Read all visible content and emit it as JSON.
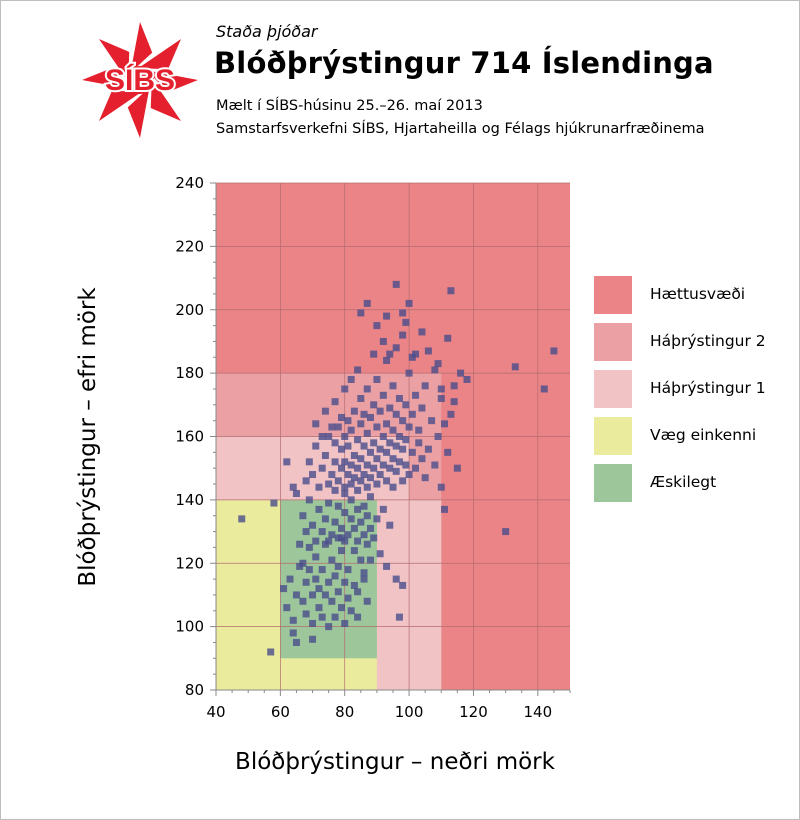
{
  "header": {
    "kicker": "Staða þjóðar",
    "title": "Blóðþrýstingur 714 Íslendinga",
    "subtitle_1": "Mælt í SÍBS-húsinu 25.–26. maí 2013",
    "subtitle_2": "Samstarfsverkefni SÍBS, Hjartaheilla og Félags hjúkrunarfræðinema"
  },
  "logo": {
    "text": "SÍBS",
    "color": "#e4202e"
  },
  "colors": {
    "hazard": "#ea8487",
    "stage2": "#eba1a3",
    "stage1": "#f1c3c4",
    "mild": "#ebeb9d",
    "desirable": "#9dc69b",
    "point": "#4b4d8c",
    "grid": "#b46c70"
  },
  "chart_data": {
    "type": "scatter",
    "xlabel": "Blóðþrýstingur – neðri mörk",
    "ylabel": "Blóðþrýstingur – efri mörk",
    "xlim": [
      40,
      150
    ],
    "ylim": [
      80,
      240
    ],
    "x_ticks": [
      "40",
      "60",
      "80",
      "100",
      "120",
      "140"
    ],
    "y_ticks": [
      "80",
      "100",
      "120",
      "140",
      "160",
      "180",
      "200",
      "220",
      "240"
    ],
    "grid": true,
    "legend_position": "right",
    "zones": [
      {
        "name": "Hættusvæði",
        "color": "#ea8487",
        "x": [
          40,
          150
        ],
        "y": [
          80,
          240
        ]
      },
      {
        "name": "Háþrýstingur 2",
        "color": "#eba1a3",
        "x": [
          40,
          110
        ],
        "y": [
          80,
          180
        ]
      },
      {
        "name": "Háþrýstingur 1",
        "color": "#f1c3c4",
        "x": [
          40,
          90
        ],
        "y": [
          80,
          160
        ]
      },
      {
        "name": "Háþrýstingur 1",
        "color": "#f1c3c4",
        "x": [
          90,
          100
        ],
        "y": [
          80,
          160
        ]
      },
      {
        "name": "Háþrýstingur 1",
        "color": "#f1c3c4",
        "x": [
          90,
          110
        ],
        "y": [
          80,
          140
        ]
      },
      {
        "name": "Væg einkenni",
        "color": "#ebeb9d",
        "x": [
          40,
          90
        ],
        "y": [
          80,
          140
        ]
      },
      {
        "name": "Æskilegt",
        "color": "#9dc69b",
        "x": [
          60,
          90
        ],
        "y": [
          90,
          140
        ]
      }
    ],
    "legend": [
      {
        "label": "Hættusvæði",
        "color": "#ea8487"
      },
      {
        "label": "Háþrýstingur 2",
        "color": "#eba1a3"
      },
      {
        "label": "Háþrýstingur 1",
        "color": "#f1c3c4"
      },
      {
        "label": "Væg einkenni",
        "color": "#ebeb9d"
      },
      {
        "label": "Æskilegt",
        "color": "#9dc69b"
      }
    ],
    "points": [
      [
        48,
        134
      ],
      [
        57,
        92
      ],
      [
        58,
        139
      ],
      [
        61,
        112
      ],
      [
        62,
        106
      ],
      [
        63,
        115
      ],
      [
        64,
        102
      ],
      [
        64,
        98
      ],
      [
        65,
        95
      ],
      [
        65,
        110
      ],
      [
        66,
        119
      ],
      [
        67,
        108
      ],
      [
        68,
        114
      ],
      [
        68,
        104
      ],
      [
        69,
        125
      ],
      [
        69,
        118
      ],
      [
        70,
        110
      ],
      [
        70,
        101
      ],
      [
        70,
        96
      ],
      [
        71,
        122
      ],
      [
        71,
        115
      ],
      [
        72,
        112
      ],
      [
        72,
        106
      ],
      [
        73,
        118
      ],
      [
        73,
        103
      ],
      [
        74,
        126
      ],
      [
        74,
        110
      ],
      [
        75,
        114
      ],
      [
        75,
        100
      ],
      [
        76,
        121
      ],
      [
        76,
        108
      ],
      [
        77,
        116
      ],
      [
        77,
        103
      ],
      [
        78,
        111
      ],
      [
        78,
        119
      ],
      [
        79,
        106
      ],
      [
        79,
        124
      ],
      [
        80,
        114
      ],
      [
        80,
        101
      ],
      [
        81,
        109
      ],
      [
        81,
        118
      ],
      [
        82,
        105
      ],
      [
        83,
        113
      ],
      [
        84,
        103
      ],
      [
        86,
        117
      ],
      [
        88,
        121
      ],
      [
        66,
        126
      ],
      [
        67,
        135
      ],
      [
        68,
        130
      ],
      [
        69,
        140
      ],
      [
        70,
        132
      ],
      [
        71,
        127
      ],
      [
        72,
        137
      ],
      [
        73,
        130
      ],
      [
        74,
        134
      ],
      [
        75,
        139
      ],
      [
        76,
        129
      ],
      [
        77,
        143
      ],
      [
        77,
        133
      ],
      [
        78,
        128
      ],
      [
        78,
        138
      ],
      [
        79,
        131
      ],
      [
        80,
        127
      ],
      [
        80,
        136
      ],
      [
        80,
        142
      ],
      [
        81,
        129
      ],
      [
        82,
        134
      ],
      [
        82,
        140
      ],
      [
        83,
        124
      ],
      [
        83,
        131
      ],
      [
        84,
        127
      ],
      [
        84,
        137
      ],
      [
        85,
        133
      ],
      [
        85,
        121
      ],
      [
        86,
        129
      ],
      [
        86,
        138
      ],
      [
        87,
        126
      ],
      [
        87,
        135
      ],
      [
        88,
        131
      ],
      [
        88,
        141
      ],
      [
        89,
        128
      ],
      [
        90,
        134
      ],
      [
        91,
        123
      ],
      [
        92,
        137
      ],
      [
        93,
        119
      ],
      [
        94,
        132
      ],
      [
        96,
        115
      ],
      [
        97,
        103
      ],
      [
        98,
        113
      ],
      [
        67,
        120
      ],
      [
        68,
        146
      ],
      [
        69,
        152
      ],
      [
        70,
        148
      ],
      [
        71,
        157
      ],
      [
        72,
        144
      ],
      [
        73,
        150
      ],
      [
        74,
        154
      ],
      [
        75,
        145
      ],
      [
        75,
        160
      ],
      [
        76,
        148
      ],
      [
        77,
        152
      ],
      [
        77,
        158
      ],
      [
        78,
        146
      ],
      [
        78,
        163
      ],
      [
        79,
        150
      ],
      [
        79,
        156
      ],
      [
        80,
        144
      ],
      [
        80,
        152
      ],
      [
        80,
        160
      ],
      [
        81,
        148
      ],
      [
        81,
        157
      ],
      [
        81,
        165
      ],
      [
        82,
        145
      ],
      [
        82,
        151
      ],
      [
        82,
        162
      ],
      [
        83,
        147
      ],
      [
        83,
        154
      ],
      [
        83,
        168
      ],
      [
        84,
        143
      ],
      [
        84,
        150
      ],
      [
        84,
        159
      ],
      [
        85,
        146
      ],
      [
        85,
        153
      ],
      [
        85,
        164
      ],
      [
        85,
        172
      ],
      [
        86,
        148
      ],
      [
        86,
        157
      ],
      [
        86,
        167
      ],
      [
        87,
        144
      ],
      [
        87,
        151
      ],
      [
        87,
        161
      ],
      [
        87,
        175
      ],
      [
        88,
        147
      ],
      [
        88,
        155
      ],
      [
        88,
        166
      ],
      [
        89,
        150
      ],
      [
        89,
        158
      ],
      [
        89,
        170
      ],
      [
        90,
        145
      ],
      [
        90,
        153
      ],
      [
        90,
        163
      ],
      [
        90,
        178
      ],
      [
        91,
        148
      ],
      [
        91,
        156
      ],
      [
        91,
        168
      ],
      [
        92,
        151
      ],
      [
        92,
        160
      ],
      [
        92,
        173
      ],
      [
        93,
        146
      ],
      [
        93,
        155
      ],
      [
        93,
        164
      ],
      [
        93,
        184
      ],
      [
        94,
        150
      ],
      [
        94,
        158
      ],
      [
        94,
        169
      ],
      [
        95,
        144
      ],
      [
        95,
        153
      ],
      [
        95,
        162
      ],
      [
        95,
        176
      ],
      [
        96,
        149
      ],
      [
        96,
        157
      ],
      [
        96,
        167
      ],
      [
        96,
        188
      ],
      [
        97,
        152
      ],
      [
        97,
        160
      ],
      [
        97,
        172
      ],
      [
        98,
        146
      ],
      [
        98,
        156
      ],
      [
        98,
        165
      ],
      [
        98,
        192
      ],
      [
        99,
        151
      ],
      [
        99,
        159
      ],
      [
        99,
        170
      ],
      [
        99,
        196
      ],
      [
        100,
        148
      ],
      [
        100,
        163
      ],
      [
        100,
        180
      ],
      [
        101,
        155
      ],
      [
        101,
        167
      ],
      [
        102,
        150
      ],
      [
        102,
        173
      ],
      [
        102,
        186
      ],
      [
        103,
        158
      ],
      [
        103,
        162
      ],
      [
        104,
        153
      ],
      [
        104,
        169
      ],
      [
        105,
        147
      ],
      [
        105,
        176
      ],
      [
        106,
        156
      ],
      [
        107,
        165
      ],
      [
        108,
        151
      ],
      [
        108,
        181
      ],
      [
        109,
        160
      ],
      [
        110,
        144
      ],
      [
        110,
        172
      ],
      [
        111,
        164
      ],
      [
        111,
        137
      ],
      [
        112,
        155
      ],
      [
        112,
        191
      ],
      [
        113,
        167
      ],
      [
        113,
        206
      ],
      [
        114,
        176
      ],
      [
        115,
        150
      ],
      [
        116,
        180
      ],
      [
        96,
        208
      ],
      [
        87,
        202
      ],
      [
        85,
        199
      ],
      [
        90,
        195
      ],
      [
        93,
        198
      ],
      [
        98,
        199
      ],
      [
        100,
        202
      ],
      [
        104,
        193
      ],
      [
        106,
        187
      ],
      [
        92,
        190
      ],
      [
        89,
        186
      ],
      [
        94,
        186
      ],
      [
        101,
        185
      ],
      [
        109,
        183
      ],
      [
        110,
        175
      ],
      [
        114,
        171
      ],
      [
        118,
        178
      ],
      [
        130,
        130
      ],
      [
        133,
        182
      ],
      [
        142,
        175
      ],
      [
        145,
        187
      ],
      [
        86,
        115
      ],
      [
        84,
        111
      ],
      [
        87,
        108
      ],
      [
        75,
        127
      ],
      [
        79,
        128
      ],
      [
        65,
        142
      ],
      [
        62,
        152
      ],
      [
        64,
        144
      ],
      [
        71,
        164
      ],
      [
        74,
        168
      ],
      [
        77,
        171
      ],
      [
        80,
        175
      ],
      [
        82,
        178
      ],
      [
        84,
        181
      ],
      [
        73,
        160
      ],
      [
        76,
        163
      ],
      [
        79,
        166
      ]
    ]
  }
}
